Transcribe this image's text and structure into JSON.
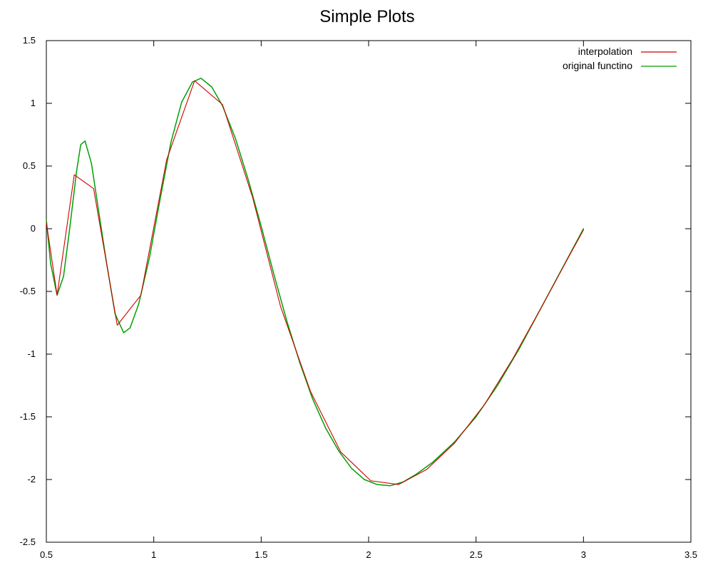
{
  "chart_data": {
    "type": "line",
    "title": "Simple Plots",
    "xlabel": "",
    "ylabel": "",
    "xlim": [
      0.5,
      3.5
    ],
    "ylim": [
      -2.5,
      1.5
    ],
    "x_ticks": [
      "0.5",
      "1",
      "1.5",
      "2",
      "2.5",
      "3",
      "3.5"
    ],
    "y_ticks": [
      "1.5",
      "1",
      "0.5",
      "0",
      "-0.5",
      "-1",
      "-1.5",
      "-2",
      "-2.5"
    ],
    "legend_position": "top-right",
    "grid": false,
    "series": [
      {
        "name": "interpolation",
        "color": "#cc0000",
        "points": [
          [
            0.5,
            0.05
          ],
          [
            0.55,
            -0.53
          ],
          [
            0.63,
            0.43
          ],
          [
            0.72,
            0.32
          ],
          [
            0.83,
            -0.77
          ],
          [
            0.94,
            -0.53
          ],
          [
            1.06,
            0.55
          ],
          [
            1.19,
            1.18
          ],
          [
            1.32,
            0.99
          ],
          [
            1.46,
            0.25
          ],
          [
            1.59,
            -0.62
          ],
          [
            1.73,
            -1.3
          ],
          [
            1.87,
            -1.78
          ],
          [
            2.01,
            -2.01
          ],
          [
            2.14,
            -2.04
          ],
          [
            2.27,
            -1.92
          ],
          [
            2.4,
            -1.71
          ],
          [
            2.54,
            -1.4
          ],
          [
            2.67,
            -1.04
          ],
          [
            2.8,
            -0.64
          ],
          [
            2.92,
            -0.26
          ],
          [
            3.0,
            -0.01
          ]
        ]
      },
      {
        "name": "original functino",
        "color": "#00a000",
        "points": [
          [
            0.5,
            0.07
          ],
          [
            0.52,
            -0.28
          ],
          [
            0.55,
            -0.53
          ],
          [
            0.58,
            -0.38
          ],
          [
            0.61,
            0.02
          ],
          [
            0.64,
            0.45
          ],
          [
            0.66,
            0.67
          ],
          [
            0.68,
            0.7
          ],
          [
            0.71,
            0.52
          ],
          [
            0.74,
            0.18
          ],
          [
            0.78,
            -0.27
          ],
          [
            0.82,
            -0.68
          ],
          [
            0.86,
            -0.83
          ],
          [
            0.89,
            -0.79
          ],
          [
            0.93,
            -0.6
          ],
          [
            0.98,
            -0.23
          ],
          [
            1.03,
            0.24
          ],
          [
            1.08,
            0.69
          ],
          [
            1.13,
            1.01
          ],
          [
            1.18,
            1.17
          ],
          [
            1.22,
            1.2
          ],
          [
            1.27,
            1.13
          ],
          [
            1.32,
            0.98
          ],
          [
            1.38,
            0.72
          ],
          [
            1.44,
            0.39
          ],
          [
            1.5,
            0.02
          ],
          [
            1.56,
            -0.37
          ],
          [
            1.62,
            -0.74
          ],
          [
            1.68,
            -1.07
          ],
          [
            1.74,
            -1.36
          ],
          [
            1.8,
            -1.59
          ],
          [
            1.86,
            -1.77
          ],
          [
            1.92,
            -1.91
          ],
          [
            1.98,
            -2.0
          ],
          [
            2.04,
            -2.04
          ],
          [
            2.1,
            -2.05
          ],
          [
            2.16,
            -2.02
          ],
          [
            2.22,
            -1.96
          ],
          [
            2.3,
            -1.86
          ],
          [
            2.4,
            -1.7
          ],
          [
            2.5,
            -1.5
          ],
          [
            2.6,
            -1.25
          ],
          [
            2.7,
            -0.96
          ],
          [
            2.8,
            -0.64
          ],
          [
            2.9,
            -0.32
          ],
          [
            3.0,
            0.0
          ]
        ]
      }
    ]
  }
}
